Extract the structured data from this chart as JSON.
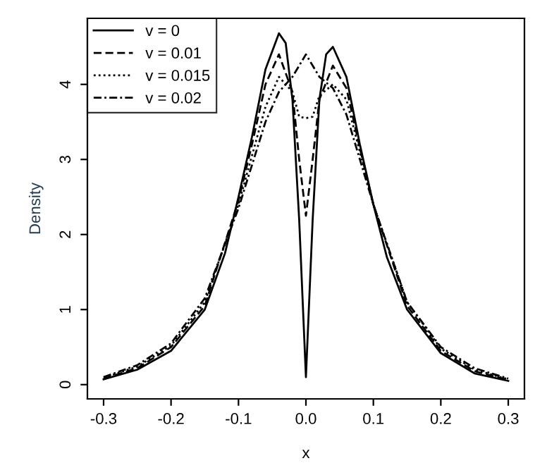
{
  "chart_data": {
    "type": "line",
    "xlabel": "x",
    "ylabel": "Density",
    "xlim": [
      -0.324,
      0.324
    ],
    "ylim": [
      -0.19,
      4.88
    ],
    "xticks": [
      {
        "value": -0.3,
        "label": "-0.3"
      },
      {
        "value": -0.2,
        "label": "-0.2"
      },
      {
        "value": -0.1,
        "label": "-0.1"
      },
      {
        "value": 0,
        "label": "0.0"
      },
      {
        "value": 0.1,
        "label": "0.1"
      },
      {
        "value": 0.2,
        "label": "0.2"
      },
      {
        "value": 0.3,
        "label": "0.3"
      }
    ],
    "yticks": [
      0,
      1,
      2,
      3,
      4
    ],
    "grid": false,
    "legend": "top left",
    "series": [
      {
        "name": "v = 0",
        "color": "#000000",
        "line_style": "solid",
        "x": [
          -0.3,
          -0.25,
          -0.2,
          -0.15,
          -0.12,
          -0.1,
          -0.08,
          -0.06,
          -0.04,
          -0.03,
          -0.02,
          -0.01,
          0,
          0.01,
          0.02,
          0.03,
          0.04,
          0.06,
          0.08,
          0.1,
          0.12,
          0.15,
          0.2,
          0.25,
          0.3
        ],
        "values": [
          0.07,
          0.2,
          0.45,
          1.0,
          1.75,
          2.5,
          3.3,
          4.2,
          4.68,
          4.55,
          3.8,
          2.2,
          0.1,
          2.2,
          3.8,
          4.4,
          4.5,
          4.1,
          3.2,
          2.4,
          1.7,
          1.0,
          0.42,
          0.15,
          0.05
        ]
      },
      {
        "name": "v = 0.01",
        "color": "#000000",
        "line_style": "dashed",
        "x": [
          -0.3,
          -0.25,
          -0.2,
          -0.15,
          -0.1,
          -0.08,
          -0.06,
          -0.04,
          -0.02,
          -0.01,
          0,
          0.01,
          0.02,
          0.04,
          0.06,
          0.08,
          0.1,
          0.15,
          0.2,
          0.25,
          0.3
        ],
        "values": [
          0.08,
          0.22,
          0.5,
          1.05,
          2.45,
          3.2,
          4.0,
          4.4,
          3.9,
          3.0,
          2.25,
          3.0,
          3.8,
          4.25,
          3.95,
          3.15,
          2.4,
          1.05,
          0.45,
          0.18,
          0.06
        ]
      },
      {
        "name": "v = 0.015",
        "color": "#000000",
        "line_style": "dotted",
        "x": [
          -0.3,
          -0.25,
          -0.2,
          -0.15,
          -0.1,
          -0.06,
          -0.04,
          -0.02,
          -0.01,
          0,
          0.01,
          0.02,
          0.04,
          0.06,
          0.1,
          0.15,
          0.2,
          0.25,
          0.3
        ],
        "values": [
          0.09,
          0.24,
          0.52,
          1.1,
          2.4,
          3.7,
          4.1,
          3.9,
          3.57,
          3.55,
          3.57,
          3.85,
          4.0,
          3.8,
          2.4,
          1.1,
          0.48,
          0.2,
          0.07
        ]
      },
      {
        "name": "v = 0.02",
        "color": "#000000",
        "line_style": "dashdot",
        "x": [
          -0.3,
          -0.25,
          -0.2,
          -0.15,
          -0.1,
          -0.06,
          -0.04,
          -0.02,
          0,
          0.02,
          0.04,
          0.06,
          0.1,
          0.15,
          0.2,
          0.25,
          0.3
        ],
        "values": [
          0.1,
          0.26,
          0.55,
          1.15,
          2.35,
          3.5,
          3.9,
          4.1,
          4.4,
          4.1,
          3.95,
          3.6,
          2.4,
          1.1,
          0.5,
          0.22,
          0.08
        ]
      }
    ]
  }
}
